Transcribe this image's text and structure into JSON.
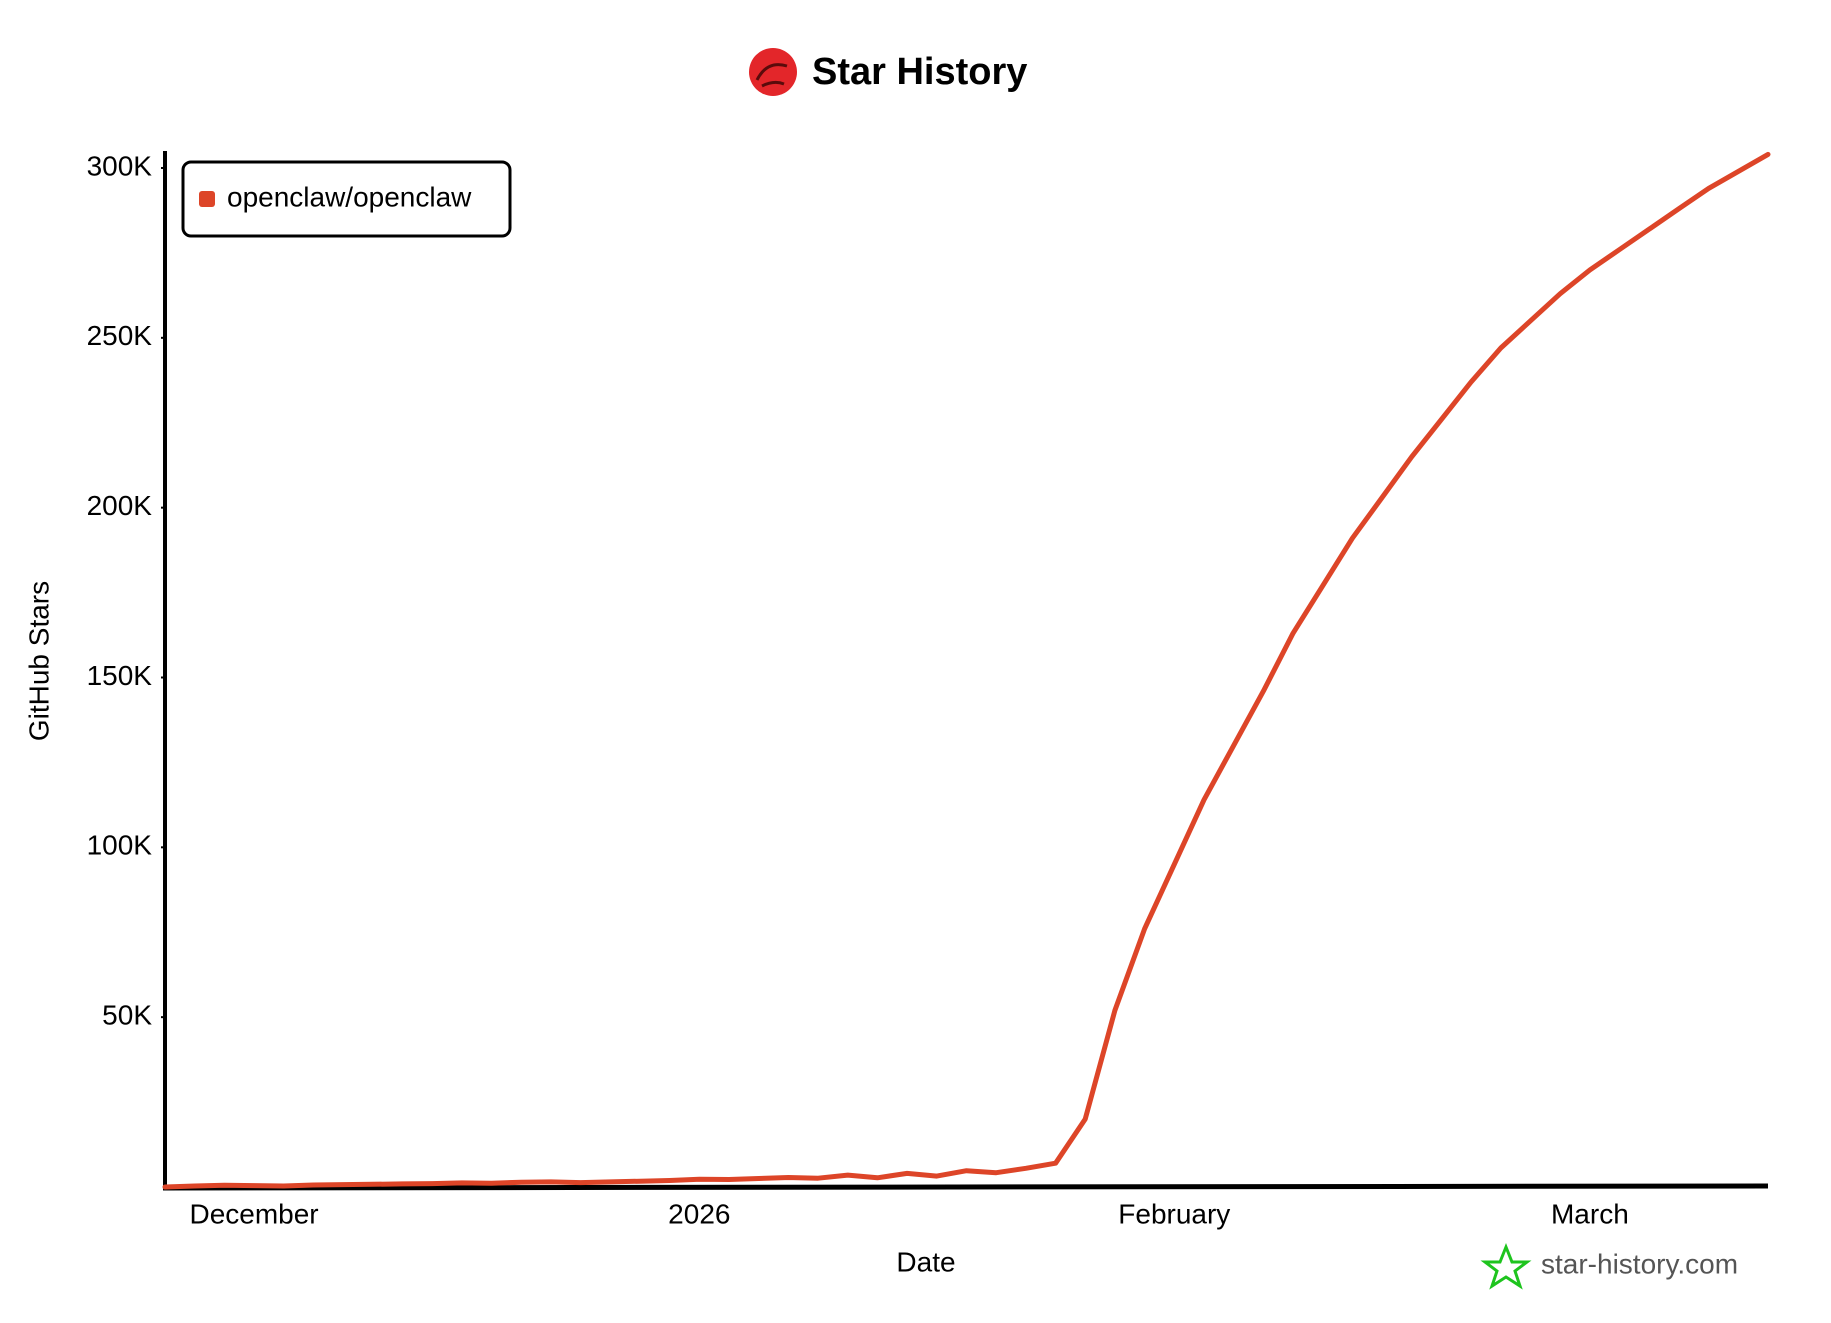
{
  "chart_data": {
    "type": "line",
    "title": "Star History",
    "x_label": "Date",
    "y_label": "GitHub Stars",
    "watermark": "star-history.com",
    "legend": "top-left",
    "grid": false,
    "categories": [
      null,
      null,
      null,
      "December",
      null,
      null,
      null,
      null,
      null,
      null,
      null,
      null,
      null,
      null,
      null,
      null,
      null,
      null,
      "2026",
      null,
      null,
      null,
      null,
      null,
      null,
      null,
      null,
      null,
      null,
      null,
      null,
      null,
      null,
      null,
      "February",
      null,
      null,
      null,
      null,
      null,
      null,
      null,
      null,
      null,
      null,
      null,
      null,
      null,
      "March",
      null,
      null,
      null,
      null,
      null,
      null
    ],
    "series": [
      {
        "name": "openclaw/openclaw",
        "color": "#dd4528",
        "values": [
          0,
          300,
          500,
          400,
          300,
          600,
          700,
          800,
          900,
          1000,
          1200,
          1100,
          1400,
          1500,
          1300,
          1500,
          1700,
          1900,
          2300,
          2200,
          2500,
          2800,
          2600,
          3500,
          2700,
          4000,
          3200,
          4800,
          4200,
          5500,
          7000,
          20000,
          52000,
          76000,
          95000,
          114000,
          130000,
          146000,
          163000,
          177000,
          191000,
          203000,
          215000,
          226000,
          237000,
          247000,
          255000,
          263000,
          270000,
          276000,
          282000,
          288000,
          294000,
          299000,
          304000
        ]
      }
    ],
    "ylim": [
      0,
      305000
    ],
    "yticks": [
      {
        "value": 50000,
        "label": "50K"
      },
      {
        "value": 100000,
        "label": "100K"
      },
      {
        "value": 150000,
        "label": "150K"
      },
      {
        "value": 200000,
        "label": "200K"
      },
      {
        "value": 250000,
        "label": "250K"
      },
      {
        "value": 300000,
        "label": "300K"
      }
    ]
  }
}
